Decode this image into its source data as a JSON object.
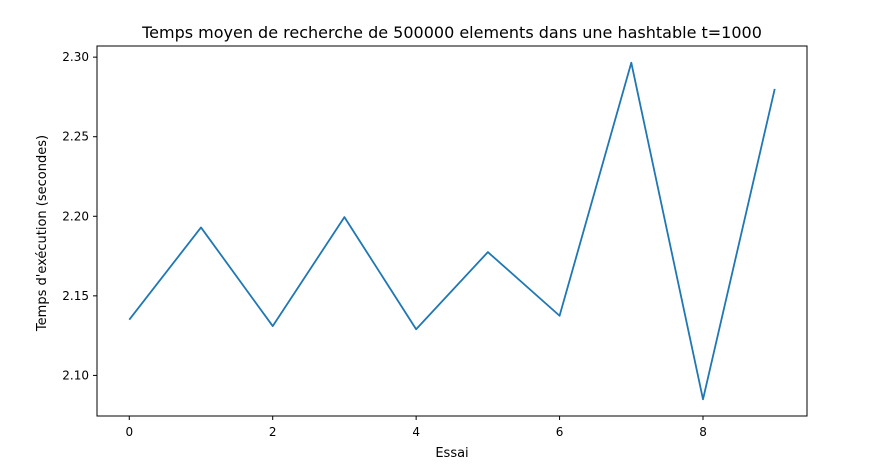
{
  "chart_data": {
    "type": "line",
    "title": "Temps moyen de recherche de 500000 elements dans une hashtable t=1000",
    "xlabel": "Essai",
    "ylabel": "Temps d'exécution (secondes)",
    "x": [
      0,
      1,
      2,
      3,
      4,
      5,
      6,
      7,
      8,
      9
    ],
    "series": [
      {
        "values": [
          2.135,
          2.193,
          2.131,
          2.1995,
          2.129,
          2.1775,
          2.1375,
          2.2965,
          2.085,
          2.28
        ],
        "color": "#1f77b4"
      }
    ],
    "xlim": [
      -0.45,
      9.45
    ],
    "ylim": [
      2.0745,
      2.307
    ],
    "xticks": [
      0,
      2,
      4,
      6,
      8
    ],
    "xtick_labels": [
      "0",
      "2",
      "4",
      "6",
      "8"
    ],
    "yticks": [
      2.1,
      2.15,
      2.2,
      2.25,
      2.3
    ],
    "ytick_labels": [
      "2.10",
      "2.15",
      "2.20",
      "2.25",
      "2.30"
    ],
    "grid": false,
    "legend": "none"
  }
}
